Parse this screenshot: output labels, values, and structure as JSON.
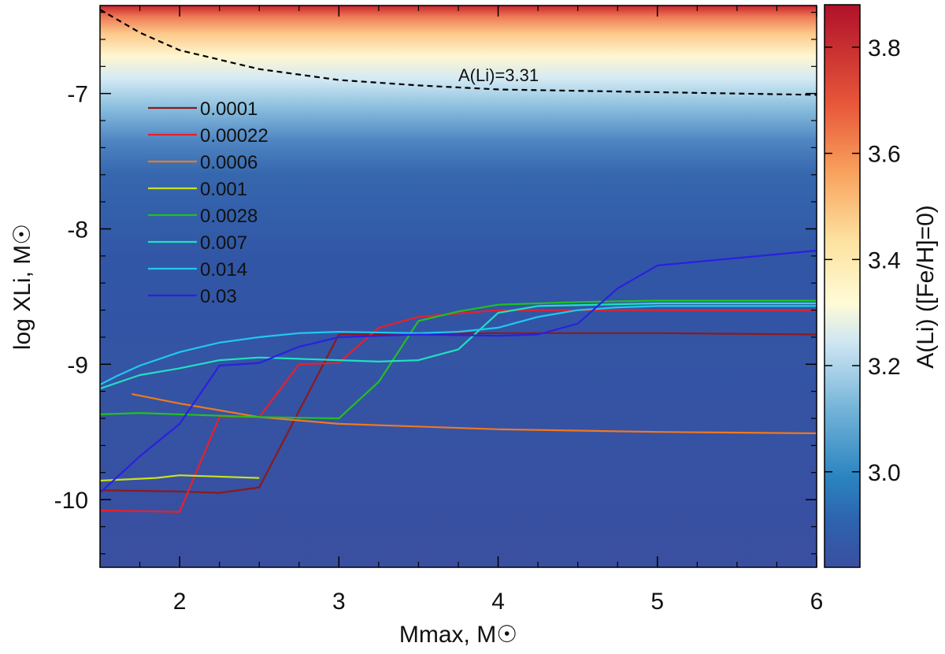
{
  "chart_data": {
    "type": "line",
    "xlabel": "Mmax, M☉",
    "ylabel": "log XLi, M☉",
    "xlim": [
      1.5,
      6.0
    ],
    "ylim": [
      -10.5,
      -6.35
    ],
    "x_ticks": [
      "2",
      "3",
      "4",
      "5",
      "6"
    ],
    "y_ticks": [
      "-7",
      "-8",
      "-9",
      "-10"
    ],
    "background": {
      "type": "heatmap",
      "colorbar_label": "A(Li) ([Fe/H]=0)",
      "colorbar_range": [
        2.82,
        3.88
      ],
      "colorbar_ticks": [
        "3.0",
        "3.2",
        "3.4",
        "3.6",
        "3.8"
      ]
    },
    "annotation": {
      "text": "A(Li)=3.31",
      "curve": {
        "x": [
          1.5,
          1.75,
          2.0,
          2.5,
          3.0,
          3.5,
          4.0,
          5.0,
          6.0
        ],
        "y": [
          -6.38,
          -6.55,
          -6.68,
          -6.82,
          -6.9,
          -6.94,
          -6.97,
          -6.99,
          -7.01
        ]
      }
    },
    "legend_position": "upper-left",
    "series": [
      {
        "name": "0.0001",
        "color": "#8b1a1a",
        "x": [
          1.5,
          2.0,
          2.25,
          2.5,
          3.0,
          4.0,
          5.0,
          6.0
        ],
        "y": [
          -9.93,
          -9.94,
          -9.95,
          -9.91,
          -8.78,
          -8.77,
          -8.77,
          -8.78
        ]
      },
      {
        "name": "0.00022",
        "color": "#e8202a",
        "x": [
          1.5,
          2.0,
          2.25,
          2.5,
          2.75,
          3.0,
          3.25,
          3.5,
          4.0,
          5.0,
          6.0
        ],
        "y": [
          -10.08,
          -10.09,
          -9.39,
          -9.39,
          -9.0,
          -8.99,
          -8.73,
          -8.65,
          -8.6,
          -8.6,
          -8.6
        ]
      },
      {
        "name": "0.0006",
        "color": "#f07820",
        "x": [
          1.7,
          2.0,
          2.5,
          3.0,
          4.0,
          5.0,
          6.0
        ],
        "y": [
          -9.22,
          -9.29,
          -9.39,
          -9.44,
          -9.48,
          -9.5,
          -9.51
        ]
      },
      {
        "name": "0.001",
        "color": "#c8e020",
        "x": [
          1.5,
          1.85,
          2.0,
          2.5
        ],
        "y": [
          -9.86,
          -9.84,
          -9.82,
          -9.84
        ]
      },
      {
        "name": "0.0028",
        "color": "#22c020",
        "x": [
          1.5,
          1.75,
          2.0,
          2.5,
          3.0,
          3.25,
          3.5,
          3.75,
          4.0,
          4.5,
          5.0,
          6.0
        ],
        "y": [
          -9.37,
          -9.36,
          -9.37,
          -9.39,
          -9.4,
          -9.13,
          -8.68,
          -8.61,
          -8.56,
          -8.54,
          -8.53,
          -8.53
        ]
      },
      {
        "name": "0.007",
        "color": "#20e0c0",
        "x": [
          1.5,
          1.75,
          2.0,
          2.25,
          2.5,
          2.75,
          3.0,
          3.25,
          3.5,
          3.75,
          4.0,
          4.25,
          5.0,
          6.0
        ],
        "y": [
          -9.18,
          -9.08,
          -9.03,
          -8.97,
          -8.95,
          -8.96,
          -8.97,
          -8.98,
          -8.97,
          -8.89,
          -8.62,
          -8.57,
          -8.55,
          -8.55
        ]
      },
      {
        "name": "0.014",
        "color": "#20c8f0",
        "x": [
          1.5,
          1.6,
          1.75,
          2.0,
          2.25,
          2.5,
          2.75,
          3.0,
          3.5,
          3.75,
          4.0,
          4.25,
          4.5,
          4.75,
          5.0,
          6.0
        ],
        "y": [
          -9.15,
          -9.09,
          -9.01,
          -8.91,
          -8.84,
          -8.8,
          -8.77,
          -8.76,
          -8.77,
          -8.76,
          -8.73,
          -8.65,
          -8.6,
          -8.58,
          -8.57,
          -8.57
        ]
      },
      {
        "name": "0.03",
        "color": "#2a20e0",
        "x": [
          1.5,
          1.75,
          2.0,
          2.25,
          2.5,
          2.75,
          3.0,
          3.5,
          4.0,
          4.25,
          4.5,
          4.75,
          5.0,
          6.0
        ],
        "y": [
          -9.95,
          -9.68,
          -9.44,
          -9.01,
          -8.99,
          -8.87,
          -8.8,
          -8.78,
          -8.79,
          -8.78,
          -8.7,
          -8.44,
          -8.27,
          -8.16
        ]
      }
    ]
  }
}
